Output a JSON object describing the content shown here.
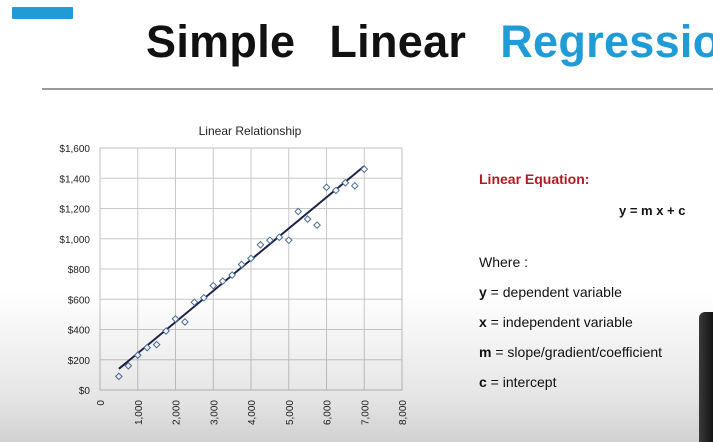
{
  "slide": {
    "title_words": [
      "Simple",
      "Linear",
      "Regression"
    ],
    "colors": {
      "accent": "#1f9bd6",
      "title_highlight": "#1f9bd6",
      "equation_title": "#b11c24"
    }
  },
  "equation": {
    "title": "Linear Equation:",
    "formula": "y = m x + c",
    "where": "Where :",
    "definitions": [
      {
        "symbol": "y",
        "sep": " = ",
        "text": "dependent variable"
      },
      {
        "symbol": "x",
        "sep": " =  ",
        "text": "independent variable"
      },
      {
        "symbol": "m",
        "sep": " =  ",
        "text": "slope/gradient/coefficient"
      },
      {
        "symbol": "c",
        "sep": " =  ",
        "text": "intercept"
      }
    ]
  },
  "chart_data": {
    "type": "scatter",
    "title": "Linear Relationship",
    "xlabel": "",
    "ylabel": "",
    "xlim": [
      0,
      8000
    ],
    "ylim": [
      0,
      1600
    ],
    "x_ticks": [
      "0",
      "1,000",
      "2,000",
      "3,000",
      "4,000",
      "5,000",
      "6,000",
      "7,000",
      "8,000"
    ],
    "y_ticks": [
      "$0",
      "$200",
      "$400",
      "$600",
      "$800",
      "$1,000",
      "$1,200",
      "$1,400",
      "$1,600"
    ],
    "grid": true,
    "legend": "none",
    "points": [
      [
        500,
        90
      ],
      [
        750,
        160
      ],
      [
        1000,
        230
      ],
      [
        1250,
        280
      ],
      [
        1500,
        300
      ],
      [
        1750,
        390
      ],
      [
        2000,
        470
      ],
      [
        2250,
        450
      ],
      [
        2500,
        580
      ],
      [
        2750,
        610
      ],
      [
        3000,
        690
      ],
      [
        3250,
        720
      ],
      [
        3500,
        760
      ],
      [
        3750,
        830
      ],
      [
        4000,
        870
      ],
      [
        4250,
        960
      ],
      [
        4500,
        990
      ],
      [
        4750,
        1010
      ],
      [
        5000,
        990
      ],
      [
        5250,
        1180
      ],
      [
        5500,
        1130
      ],
      [
        5750,
        1090
      ],
      [
        6000,
        1340
      ],
      [
        6250,
        1320
      ],
      [
        6500,
        1370
      ],
      [
        6750,
        1350
      ],
      [
        7000,
        1460
      ]
    ],
    "fit_line": [
      [
        500,
        140
      ],
      [
        7000,
        1480
      ]
    ],
    "marker_color": "#4a6d96",
    "line_color": "#1b2347"
  }
}
